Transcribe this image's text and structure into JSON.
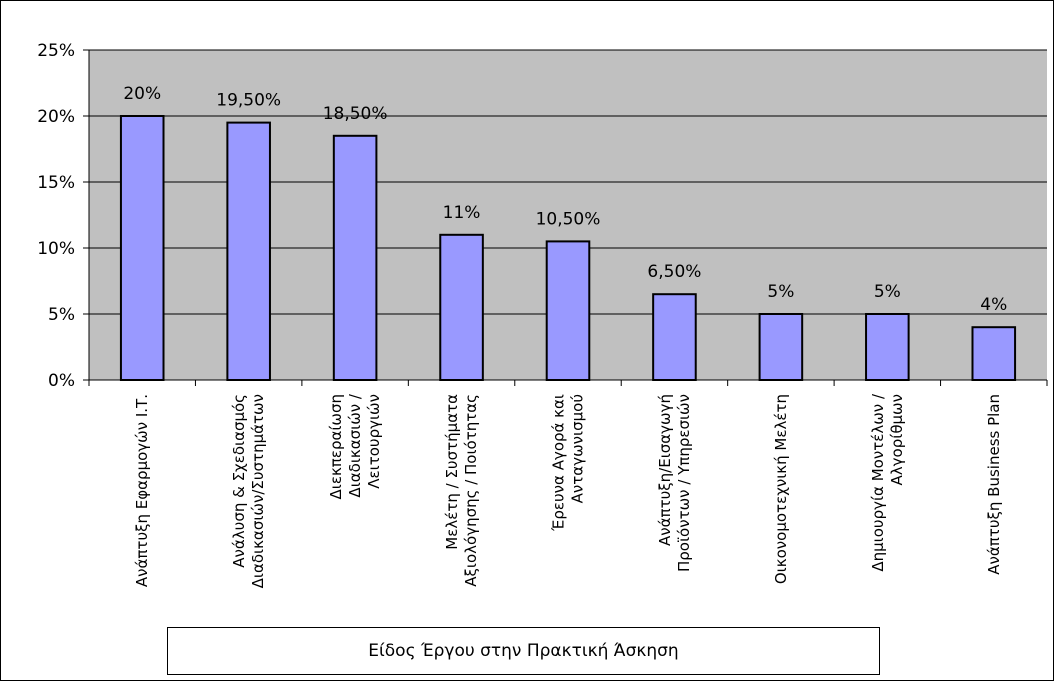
{
  "chart_data": {
    "type": "bar",
    "title": "",
    "xlabel": "Είδος Έργου στην Πρακτική Άσκηση",
    "ylabel": "",
    "ylim": [
      0,
      25
    ],
    "yticks": [
      0,
      5,
      10,
      15,
      20,
      25
    ],
    "ytick_labels": [
      "0%",
      "5%",
      "10%",
      "15%",
      "20%",
      "25%"
    ],
    "grid": true,
    "plot_background": "#C0C0C0",
    "bar_color": "#9999FF",
    "categories": [
      [
        "Ανάπτυξη Εφαρμογών Ι.Τ."
      ],
      [
        "Ανάλυση & Σχεδιασμός",
        "Διαδικασιών/Συστημάτων"
      ],
      [
        "Διεκπεραίωση",
        "Διαδικασιών /",
        "Λειτουργιών"
      ],
      [
        "Μελέτη / Συστήματα",
        "Αξιολόγησης / Ποιότητας"
      ],
      [
        "Έρευνα Αγορά και",
        "Ανταγωνισμού"
      ],
      [
        "Ανάπτυξη/Εισαγωγή",
        "Προϊόντων / Υπηρεσιών"
      ],
      [
        "Οικονομοτεχνική Μελέτη"
      ],
      [
        "Δημιουργία Μοντέλων /",
        "Αλγορίθμων"
      ],
      [
        "Ανάπτυξη Business Plan"
      ]
    ],
    "values": [
      20,
      19.5,
      18.5,
      11,
      10.5,
      6.5,
      5,
      5,
      4
    ],
    "data_labels": [
      "20%",
      "19,50%",
      "18,50%",
      "11%",
      "10,50%",
      "6,50%",
      "5%",
      "5%",
      "4%"
    ]
  }
}
